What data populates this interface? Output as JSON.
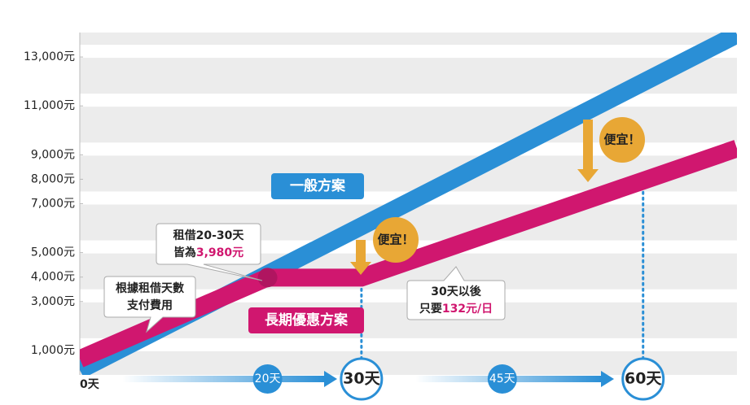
{
  "chart_data": {
    "type": "line",
    "xlim": [
      0,
      70
    ],
    "ylim": [
      0,
      14000
    ],
    "xticks": [
      {
        "value": 0,
        "label": "0天"
      }
    ],
    "yticks": [
      {
        "value": 1000,
        "label": "1,000元"
      },
      {
        "value": 3000,
        "label": "3,000元"
      },
      {
        "value": 4000,
        "label": "4,000元",
        "color": "#2a8fd6"
      },
      {
        "value": 5000,
        "label": "5,000元"
      },
      {
        "value": 7000,
        "label": "7,000元"
      },
      {
        "value": 8000,
        "label": "8,000元",
        "color": "#2a8fd6"
      },
      {
        "value": 9000,
        "label": "9,000元"
      },
      {
        "value": 11000,
        "label": "11,000元"
      },
      {
        "value": 13000,
        "label": "13,000元"
      }
    ],
    "x": [
      0,
      20,
      30,
      60,
      70
    ],
    "series": [
      {
        "name": "一般方案",
        "color": "#2a8fd6",
        "values": [
          200,
          4120,
          6080,
          11960,
          13920
        ]
      },
      {
        "name": "長期優惠方案",
        "color": "#d0176f",
        "values": [
          650,
          3980,
          3980,
          7940,
          9260
        ]
      }
    ],
    "day_markers": [
      {
        "value": 20,
        "label": "20天",
        "emphasis": false
      },
      {
        "value": 30,
        "label": "30天",
        "emphasis": true
      },
      {
        "value": 45,
        "label": "45天",
        "emphasis": false
      },
      {
        "value": 60,
        "label": "60天",
        "emphasis": true
      }
    ],
    "annotations": {
      "cheaper": [
        "便宜！",
        "便宜！"
      ],
      "pay_by_days": [
        "根據租借天數",
        "支付費用"
      ],
      "flat_price": {
        "line1": "租借20-30天",
        "line2": "皆為",
        "price": "3,980元"
      },
      "after_30": {
        "line1": "30天以後",
        "line2": "只要",
        "price": "132元/日"
      }
    }
  }
}
